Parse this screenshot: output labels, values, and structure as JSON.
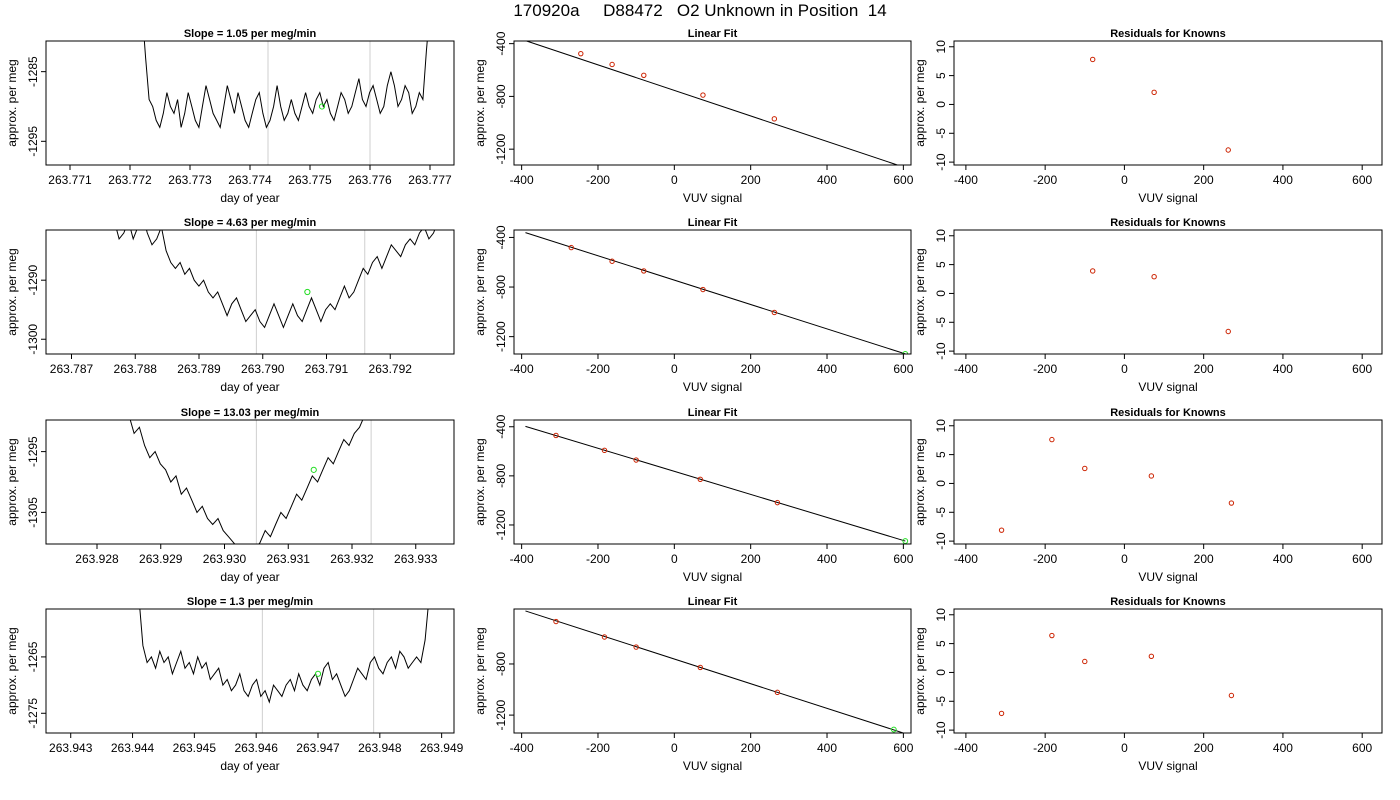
{
  "header": {
    "title": "170920a     D88472   O2 Unknown in Position  14"
  },
  "colors": {
    "trace": "#000000",
    "known_point": "#cc2200",
    "unknown_point": "#22dd22",
    "marker_line": "#cfcfcf",
    "fit_line": "#000000"
  },
  "chart_data": [
    {
      "type": "line",
      "row": 0,
      "panel": "time",
      "title": "Slope =  1.05  per meg/min",
      "xlabel": "day of year",
      "ylabel": "approx. per meg",
      "xlim": [
        263.7706,
        263.7774
      ],
      "ylim": [
        -1298.4,
        -1280.6
      ],
      "xticks": [
        "263.771",
        "263.772",
        "263.773",
        "263.774",
        "263.775",
        "263.776",
        "263.777"
      ],
      "yticks": [
        "-1285",
        "-1295"
      ],
      "trace_x_range": [
        263.7722,
        263.777
      ],
      "trace_values": [
        -1276,
        -1283,
        -1289,
        -1290,
        -1292,
        -1293,
        -1291,
        -1288,
        -1290,
        -1291,
        -1289,
        -1293,
        -1291,
        -1288,
        -1290,
        -1292,
        -1293,
        -1290,
        -1287,
        -1289,
        -1291,
        -1292,
        -1293,
        -1290,
        -1287,
        -1289,
        -1291,
        -1288,
        -1290,
        -1292,
        -1293,
        -1291,
        -1289,
        -1288,
        -1291,
        -1293,
        -1292,
        -1290,
        -1287,
        -1290,
        -1292,
        -1291,
        -1289,
        -1291,
        -1292,
        -1290,
        -1288,
        -1290,
        -1291,
        -1289,
        -1288,
        -1290,
        -1289,
        -1291,
        -1292,
        -1290,
        -1288,
        -1289,
        -1291,
        -1290,
        -1288,
        -1286,
        -1289,
        -1290,
        -1288,
        -1287,
        -1289,
        -1291,
        -1290,
        -1287,
        -1285,
        -1287,
        -1290,
        -1289,
        -1287,
        -1288,
        -1291,
        -1290,
        -1288,
        -1289,
        -1282,
        -1276
      ],
      "vlines": [
        263.7743,
        263.776
      ],
      "marker": {
        "x": 263.7752,
        "y": -1290
      }
    },
    {
      "type": "scatter",
      "row": 0,
      "panel": "fit",
      "title": "Linear Fit",
      "xlabel": "VUV signal",
      "ylabel": "approx. per meg",
      "xlim": [
        -420,
        620
      ],
      "ylim": [
        -1320,
        -380
      ],
      "xticks": [
        -400,
        -200,
        0,
        200,
        400,
        600
      ],
      "yticks": [
        -400,
        -800,
        -1200
      ],
      "fit_line": {
        "x": [
          -390,
          605
        ],
        "y": [
          -377,
          -1340
        ]
      },
      "points": [
        [
          -245,
          -476
        ],
        [
          -163,
          -558
        ],
        [
          -80,
          -640
        ],
        [
          75,
          -790
        ],
        [
          262,
          -970
        ]
      ],
      "unknown": [
        605,
        -1340
      ]
    },
    {
      "type": "scatter",
      "row": 0,
      "panel": "resid",
      "title": "Residuals for Knowns",
      "xlabel": "VUV signal",
      "ylabel": "approx. per meg",
      "xlim": [
        -430,
        650
      ],
      "ylim": [
        -10.5,
        11
      ],
      "xticks": [
        -400,
        -200,
        0,
        200,
        400,
        600
      ],
      "yticks": [
        10,
        5,
        0,
        -5,
        -10
      ],
      "points": [
        [
          -80,
          7.8
        ],
        [
          75,
          2.1
        ],
        [
          262,
          -7.9
        ]
      ]
    },
    {
      "type": "line",
      "row": 1,
      "panel": "time",
      "title": "Slope =  4.63  per meg/min",
      "xlabel": "day of year",
      "ylabel": "approx. per meg",
      "xlim": [
        263.7866,
        263.793
      ],
      "ylim": [
        -1302.5,
        -1281.5
      ],
      "xticks": [
        "263.787",
        "263.788",
        "263.789",
        "263.790",
        "263.791",
        "263.792"
      ],
      "yticks": [
        "-1290",
        "-1300"
      ],
      "trace_x_range": [
        263.7876,
        263.7929
      ],
      "trace_values": [
        -1276,
        -1280,
        -1283,
        -1282,
        -1280,
        -1283,
        -1281,
        -1279,
        -1282,
        -1284,
        -1283,
        -1281,
        -1285,
        -1287,
        -1288,
        -1287,
        -1289,
        -1288,
        -1290,
        -1291,
        -1290,
        -1292,
        -1293,
        -1292,
        -1294,
        -1296,
        -1294,
        -1293,
        -1295,
        -1297,
        -1296,
        -1295,
        -1297,
        -1298,
        -1296,
        -1294,
        -1296,
        -1298,
        -1296,
        -1294,
        -1296,
        -1297,
        -1295,
        -1293,
        -1295,
        -1297,
        -1295,
        -1294,
        -1295,
        -1293,
        -1291,
        -1293,
        -1292,
        -1290,
        -1288,
        -1289,
        -1287,
        -1286,
        -1288,
        -1286,
        -1284,
        -1285,
        -1286,
        -1284,
        -1283,
        -1284,
        -1282,
        -1281,
        -1283,
        -1282,
        -1280,
        -1279,
        -1276
      ],
      "vlines": [
        263.7899,
        263.7916
      ],
      "marker": {
        "x": 263.7907,
        "y": -1292
      }
    },
    {
      "type": "scatter",
      "row": 1,
      "panel": "fit",
      "title": "Linear Fit",
      "xlabel": "VUV signal",
      "ylabel": "approx. per meg",
      "xlim": [
        -420,
        620
      ],
      "ylim": [
        -1340,
        -340
      ],
      "xticks": [
        -400,
        -200,
        0,
        200,
        400,
        600
      ],
      "yticks": [
        -400,
        -800,
        -1200
      ],
      "fit_line": {
        "x": [
          -390,
          605
        ],
        "y": [
          -361,
          -1339
        ]
      },
      "points": [
        [
          -270,
          -482
        ],
        [
          -163,
          -592
        ],
        [
          -80,
          -670
        ],
        [
          75,
          -820
        ],
        [
          262,
          -1005
        ]
      ],
      "unknown": [
        605,
        -1339
      ]
    },
    {
      "type": "scatter",
      "row": 1,
      "panel": "resid",
      "title": "Residuals for Knowns",
      "xlabel": "VUV signal",
      "ylabel": "approx. per meg",
      "xlim": [
        -430,
        650
      ],
      "ylim": [
        -10.5,
        11
      ],
      "xticks": [
        -400,
        -200,
        0,
        200,
        400,
        600
      ],
      "yticks": [
        10,
        5,
        0,
        -5,
        -10
      ],
      "points": [
        [
          -80,
          3.9
        ],
        [
          75,
          2.9
        ],
        [
          262,
          -6.6
        ]
      ]
    },
    {
      "type": "line",
      "row": 2,
      "panel": "time",
      "title": "Slope =  13.03  per meg/min",
      "xlabel": "day of year",
      "ylabel": "approx. per meg",
      "xlim": [
        263.9272,
        263.9336
      ],
      "ylim": [
        -1310.2,
        -1289.8
      ],
      "xticks": [
        "263.928",
        "263.929",
        "263.930",
        "263.931",
        "263.932",
        "263.933"
      ],
      "yticks": [
        "-1295",
        "-1305"
      ],
      "trace_x_range": [
        263.9285,
        263.9322
      ],
      "trace_values": [
        -1289,
        -1292,
        -1291,
        -1294,
        -1296,
        -1295,
        -1297,
        -1298,
        -1300,
        -1299,
        -1302,
        -1301,
        -1303,
        -1305,
        -1304,
        -1306,
        -1307,
        -1306,
        -1308,
        -1309,
        -1310,
        -1311,
        -1312,
        -1312,
        -1311,
        -1310,
        -1308,
        -1309,
        -1307,
        -1305,
        -1306,
        -1304,
        -1302,
        -1303,
        -1301,
        -1299,
        -1300,
        -1298,
        -1296,
        -1297,
        -1295,
        -1293,
        -1294,
        -1292,
        -1291,
        -1289
      ],
      "vlines": [
        263.9305,
        263.9323
      ],
      "marker": {
        "x": 263.9314,
        "y": -1298
      }
    },
    {
      "type": "scatter",
      "row": 2,
      "panel": "fit",
      "title": "Linear Fit",
      "xlabel": "VUV signal",
      "ylabel": "approx. per meg",
      "xlim": [
        -420,
        620
      ],
      "ylim": [
        -1355,
        -345
      ],
      "xticks": [
        -400,
        -200,
        0,
        200,
        400,
        600
      ],
      "yticks": [
        -400,
        -800,
        -1200
      ],
      "fit_line": {
        "x": [
          -390,
          605
        ],
        "y": [
          -397,
          -1331
        ]
      },
      "points": [
        [
          -310,
          -471
        ],
        [
          -183,
          -592
        ],
        [
          -100,
          -671
        ],
        [
          68,
          -828
        ],
        [
          270,
          -1018
        ]
      ],
      "unknown": [
        605,
        -1331
      ]
    },
    {
      "type": "scatter",
      "row": 2,
      "panel": "resid",
      "title": "Residuals for Knowns",
      "xlabel": "VUV signal",
      "ylabel": "approx. per meg",
      "xlim": [
        -430,
        650
      ],
      "ylim": [
        -10.5,
        11
      ],
      "xticks": [
        -400,
        -200,
        0,
        200,
        400,
        600
      ],
      "yticks": [
        10,
        5,
        0,
        -5,
        -10
      ],
      "points": [
        [
          -310,
          -8.1
        ],
        [
          -183,
          7.6
        ],
        [
          -100,
          2.6
        ],
        [
          68,
          1.3
        ],
        [
          270,
          -3.4
        ]
      ]
    },
    {
      "type": "line",
      "row": 3,
      "panel": "time",
      "title": "Slope =  1.3  per meg/min",
      "xlabel": "day of year",
      "ylabel": "approx. per meg",
      "xlim": [
        263.9426,
        263.9492
      ],
      "ylim": [
        -1278.5,
        -1256.5
      ],
      "xticks": [
        "263.943",
        "263.944",
        "263.945",
        "263.946",
        "263.947",
        "263.948",
        "263.949"
      ],
      "yticks": [
        "-1265",
        "-1275"
      ],
      "trace_x_range": [
        263.9441,
        263.9488
      ],
      "trace_values": [
        -1254,
        -1263,
        -1266,
        -1265,
        -1267,
        -1264,
        -1266,
        -1265,
        -1268,
        -1266,
        -1264,
        -1267,
        -1266,
        -1268,
        -1265,
        -1267,
        -1266,
        -1269,
        -1268,
        -1267,
        -1270,
        -1269,
        -1271,
        -1270,
        -1268,
        -1271,
        -1272,
        -1270,
        -1269,
        -1272,
        -1271,
        -1273,
        -1270,
        -1271,
        -1272,
        -1270,
        -1269,
        -1271,
        -1268,
        -1270,
        -1271,
        -1269,
        -1268,
        -1270,
        -1267,
        -1266,
        -1269,
        -1268,
        -1270,
        -1272,
        -1271,
        -1269,
        -1267,
        -1268,
        -1269,
        -1266,
        -1265,
        -1267,
        -1268,
        -1266,
        -1265,
        -1267,
        -1264,
        -1265,
        -1267,
        -1266,
        -1265,
        -1266,
        -1262,
        -1254
      ],
      "vlines": [
        263.9461,
        263.9479
      ],
      "marker": {
        "x": 263.947,
        "y": -1268
      }
    },
    {
      "type": "scatter",
      "row": 3,
      "panel": "fit",
      "title": "Linear Fit",
      "xlabel": "VUV signal",
      "ylabel": "approx. per meg",
      "xlim": [
        -420,
        620
      ],
      "ylim": [
        -1340,
        -370
      ],
      "xticks": [
        -400,
        -200,
        0,
        200,
        400,
        600
      ],
      "yticks": [
        -800,
        -1200
      ],
      "fit_line": {
        "x": [
          -390,
          605
        ],
        "y": [
          -385,
          -1345
        ]
      },
      "points": [
        [
          -310,
          -468
        ],
        [
          -183,
          -589
        ],
        [
          -100,
          -668
        ],
        [
          68,
          -827
        ],
        [
          270,
          -1022
        ]
      ],
      "unknown": [
        575,
        -1313
      ]
    },
    {
      "type": "scatter",
      "row": 3,
      "panel": "resid",
      "title": "Residuals for Knowns",
      "xlabel": "VUV signal",
      "ylabel": "approx. per meg",
      "xlim": [
        -430,
        650
      ],
      "ylim": [
        -10.5,
        11
      ],
      "xticks": [
        -400,
        -200,
        0,
        200,
        400,
        600
      ],
      "yticks": [
        10,
        5,
        0,
        -5,
        -10
      ],
      "points": [
        [
          -310,
          -7.1
        ],
        [
          -183,
          6.4
        ],
        [
          -100,
          1.9
        ],
        [
          68,
          2.8
        ],
        [
          270,
          -4.0
        ]
      ]
    }
  ]
}
